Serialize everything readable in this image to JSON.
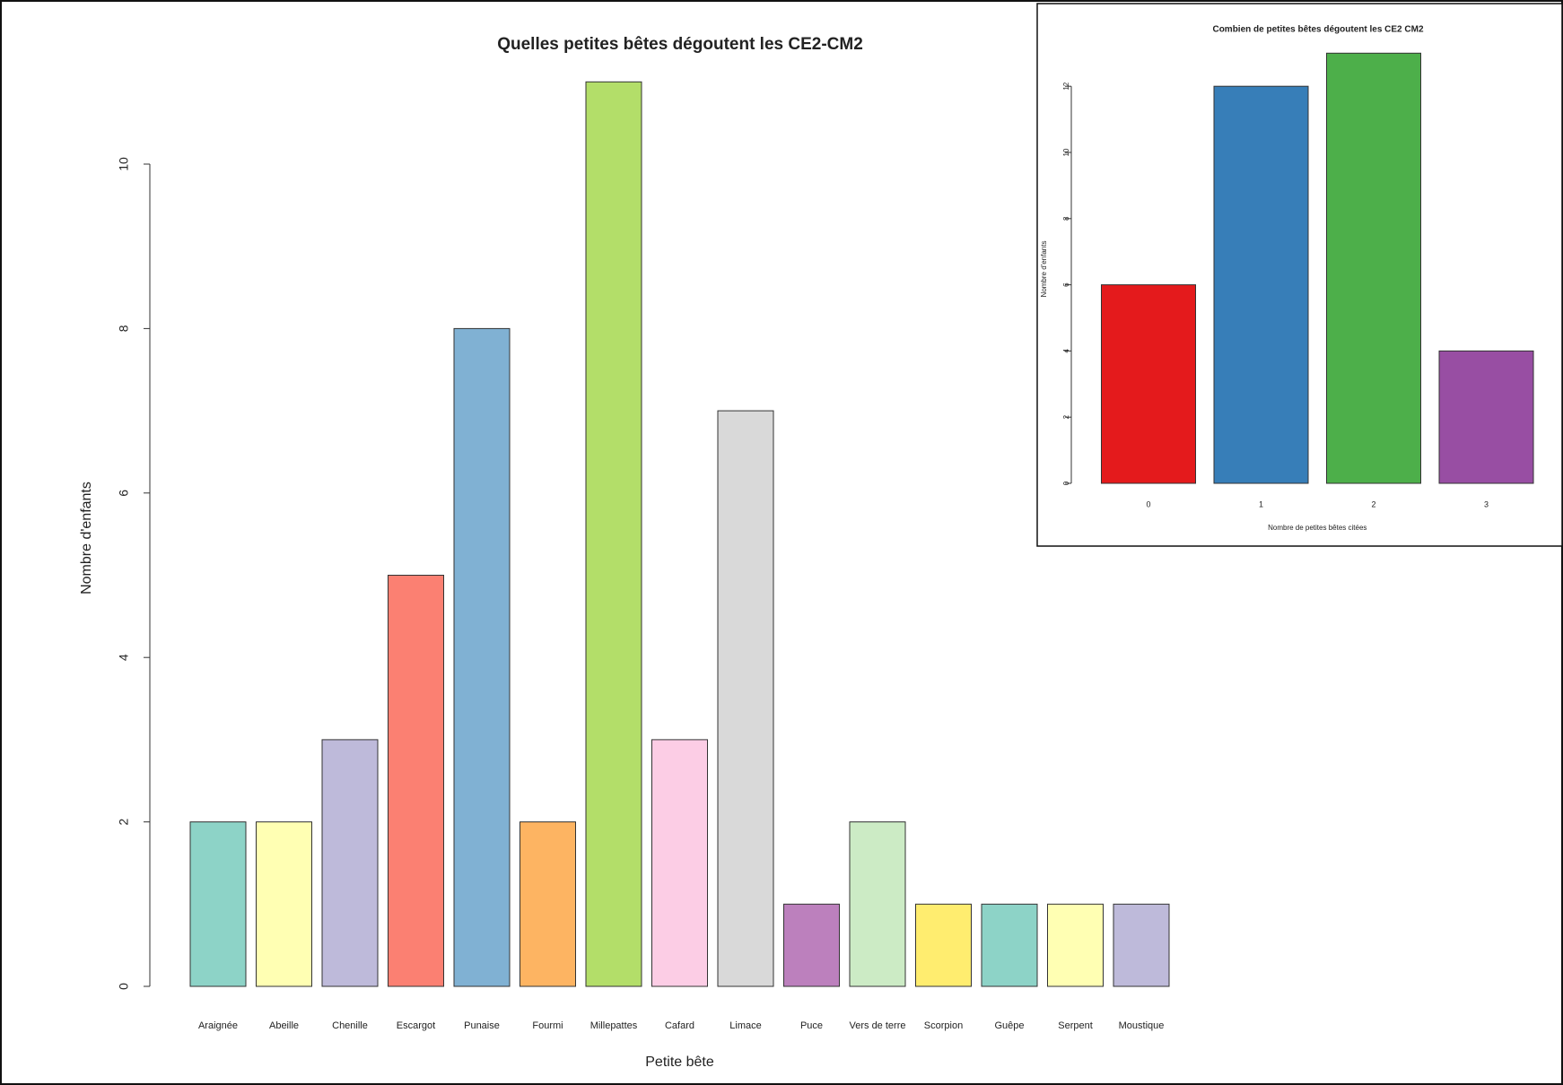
{
  "chart_data": [
    {
      "type": "bar",
      "title": "Quelles petites bêtes dégoutent les CE2-CM2",
      "x_label": "Petite bête",
      "y_label": "Nombre d'enfants",
      "categories": [
        "Araignée",
        "Abeille",
        "Chenille",
        "Escargot",
        "Punaise",
        "Fourmi",
        "Millepattes",
        "Cafard",
        "Limace",
        "Puce",
        "Vers de terre",
        "Scorpion",
        "Guêpe",
        "Serpent",
        "Moustique"
      ],
      "values": [
        2,
        2,
        3,
        5,
        8,
        2,
        11,
        3,
        7,
        1,
        2,
        1,
        1,
        1,
        1
      ],
      "colors": [
        "#8dd3c7",
        "#ffffb3",
        "#bebada",
        "#fb8072",
        "#80b1d3",
        "#fdb462",
        "#b3de69",
        "#fccde5",
        "#d9d9d9",
        "#bc80bd",
        "#ccebc5",
        "#ffed6f",
        "#8dd3c7",
        "#ffffb3",
        "#bebada"
      ],
      "ylim": [
        0,
        11
      ],
      "yticks": [
        0,
        2,
        4,
        6,
        8,
        10
      ]
    },
    {
      "type": "bar",
      "title": "Combien de petites bêtes dégoutent les CE2 CM2",
      "x_label": "Nombre de petites bêtes citées",
      "y_label": "Nombre d'enfants",
      "categories": [
        "0",
        "1",
        "2",
        "3"
      ],
      "values": [
        6,
        12,
        13,
        4
      ],
      "colors": [
        "#e41a1c",
        "#377eb8",
        "#4daf4a",
        "#984ea3"
      ],
      "ylim": [
        0,
        13
      ],
      "yticks": [
        0,
        2,
        4,
        6,
        8,
        10,
        12
      ]
    }
  ]
}
